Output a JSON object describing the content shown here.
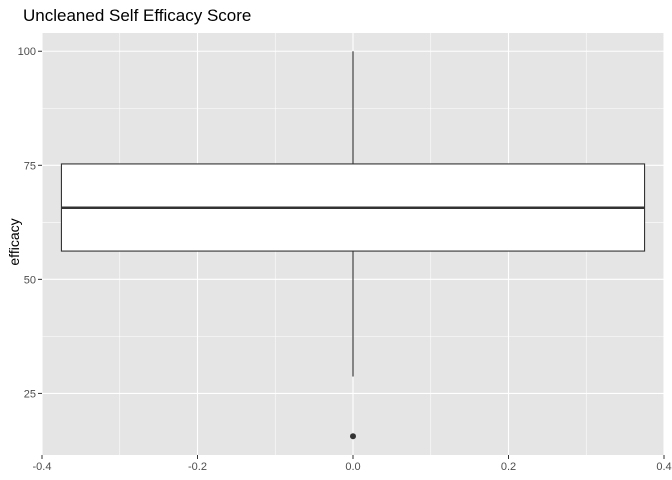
{
  "chart_data": {
    "type": "box",
    "title": "Uncleaned Self Efficacy Score",
    "xlabel": "",
    "ylabel": "efficacy",
    "xlim": [
      -0.4,
      0.4
    ],
    "ylim": [
      11.5,
      104
    ],
    "x_ticks": [
      -0.4,
      -0.2,
      0.0,
      0.2,
      0.4
    ],
    "x_tick_labels": [
      "-0.4",
      "-0.2",
      "0.0",
      "0.2",
      "0.4"
    ],
    "y_ticks": [
      25,
      50,
      75,
      100
    ],
    "y_tick_labels": [
      "25",
      "50",
      "75",
      "100"
    ],
    "grid": true,
    "box": {
      "x_center": 0.0,
      "x_min": -0.375,
      "x_max": 0.375,
      "whisker_low": 28.7,
      "q1": 56.2,
      "median": 65.7,
      "q3": 75.3,
      "whisker_high": 100,
      "outliers": [
        15.6
      ]
    },
    "colors": {
      "panel": "#e5e5e5",
      "grid_major": "#ffffff",
      "box_fill": "#ffffff",
      "box_line": "#333333",
      "outlier": "#333333"
    }
  }
}
